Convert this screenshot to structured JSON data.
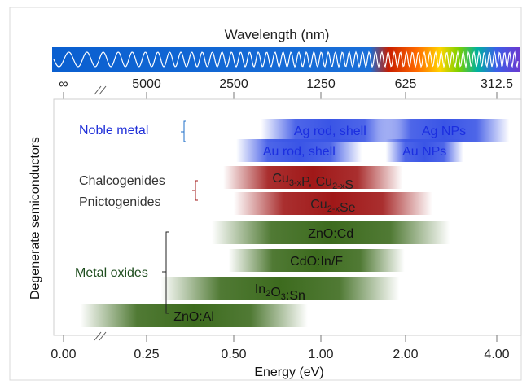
{
  "chart_data": {
    "type": "bar",
    "top_axis": {
      "label": "Wavelength (nm)",
      "ticks": [
        "∞",
        "5000",
        "2500",
        "1250",
        "625",
        "312.5"
      ]
    },
    "x_axis": {
      "label": "Energy (eV)",
      "scale": "log2 (broken axis)",
      "ticks": [
        "0.00",
        "0.25",
        "0.50",
        "1.00",
        "2.00",
        "4.00"
      ],
      "range": [
        0.0,
        4.5
      ]
    },
    "y_axis": {
      "label": "Degenerate semiconductors"
    },
    "groups": [
      {
        "name": "Noble metal",
        "color": "#1f2fd8"
      },
      {
        "name": "Chalcogenides",
        "color": "#333333"
      },
      {
        "name": "Pnictogenides",
        "color": "#333333"
      },
      {
        "name": "Metal oxides",
        "color": "#1e4d1e"
      }
    ],
    "bars": [
      {
        "label": "Ag rod, shell",
        "group": "Noble metal",
        "energy_range_eV": [
          0.62,
          1.9
        ],
        "color": "#3a55e6"
      },
      {
        "label": "Ag NPs",
        "group": "Noble metal",
        "energy_range_eV": [
          1.6,
          4.4
        ],
        "color": "#3a55e6"
      },
      {
        "label": "Au rod, shell",
        "group": "Noble metal",
        "energy_range_eV": [
          0.51,
          1.4
        ],
        "color": "#3a55e6"
      },
      {
        "label": "Au NPs",
        "group": "Noble metal",
        "energy_range_eV": [
          1.7,
          3.1
        ],
        "color": "#3a55e6"
      },
      {
        "label": "Cu3-xP, Cu2-xS",
        "base1": "Cu",
        "sub1": "3-x",
        "mid": "P, Cu",
        "sub2": "2-x",
        "tail": "S",
        "group": "Chalcogenides / Pnictogenides",
        "energy_range_eV": [
          0.46,
          1.95
        ],
        "color": "#a01818"
      },
      {
        "label": "Cu2-xSe",
        "base1": "Cu",
        "sub1": "2-x",
        "tail": "Se",
        "group": "Chalcogenides / Pnictogenides",
        "energy_range_eV": [
          0.5,
          2.45
        ],
        "color": "#a01818"
      },
      {
        "label": "ZnO:Cd",
        "group": "Metal oxides",
        "energy_range_eV": [
          0.42,
          2.8
        ],
        "color": "#3d6b1e"
      },
      {
        "label": "CdO:In/F",
        "group": "Metal oxides",
        "energy_range_eV": [
          0.48,
          1.98
        ],
        "color": "#3d6b1e"
      },
      {
        "label": "In2O3:Sn",
        "base1": "In",
        "sub1": "2",
        "mid": "O",
        "sub2": "3",
        "tail": ":Sn",
        "group": "Metal oxides",
        "energy_range_eV": [
          0.28,
          1.9
        ],
        "color": "#3d6b1e"
      },
      {
        "label": "ZnO:Al",
        "group": "Metal oxides",
        "energy_range_eV": [
          0.05,
          0.9
        ],
        "color": "#3d6b1e"
      }
    ]
  }
}
